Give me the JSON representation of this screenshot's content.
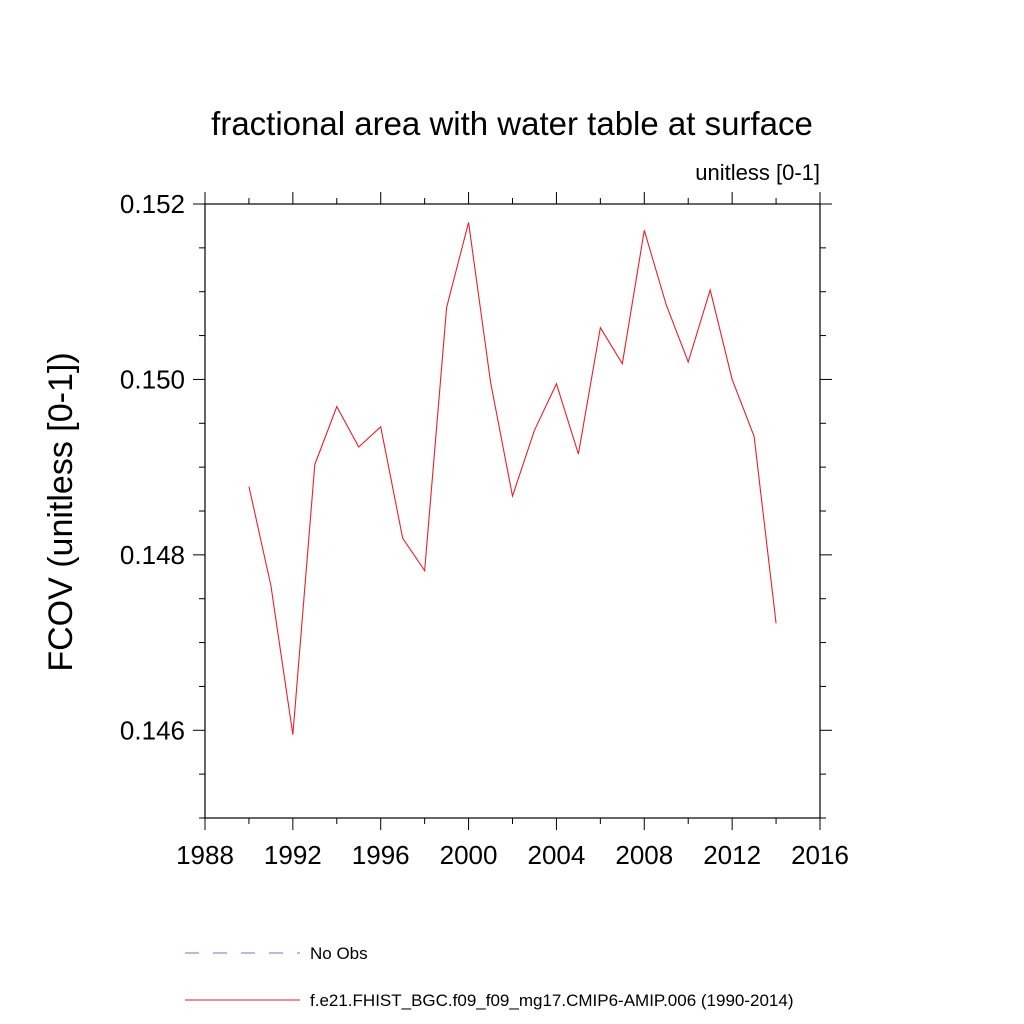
{
  "chart_data": {
    "type": "line",
    "title": "fractional area with water table at surface",
    "subtitle": "unitless [0-1]",
    "xlabel": "",
    "ylabel": "FCOV  (unitless [0-1])",
    "xlim": [
      1988,
      2016
    ],
    "ylim": [
      0.145,
      0.152
    ],
    "x_ticks": [
      "1988",
      "1992",
      "1996",
      "2000",
      "2004",
      "2008",
      "2012",
      "2016"
    ],
    "y_ticks": [
      "0.146",
      "0.148",
      "0.150",
      "0.152"
    ],
    "grid": false,
    "legend_position": "bottom",
    "series": [
      {
        "name": "f.e21.FHIST_BGC.f09_f09_mg17.CMIP6-AMIP.006 (1990-2014)",
        "color": "#e8202a",
        "style": "solid",
        "x": [
          1990,
          1991,
          1992,
          1993,
          1994,
          1995,
          1996,
          1997,
          1998,
          1999,
          2000,
          2001,
          2002,
          2003,
          2004,
          2005,
          2006,
          2007,
          2008,
          2009,
          2010,
          2011,
          2012,
          2013,
          2014
        ],
        "y": [
          0.14878,
          0.14765,
          0.14595,
          0.14903,
          0.14969,
          0.14923,
          0.14946,
          0.14819,
          0.14782,
          0.15082,
          0.15179,
          0.14997,
          0.14867,
          0.14942,
          0.14995,
          0.14915,
          0.15059,
          0.15018,
          0.1517,
          0.15085,
          0.1502,
          0.15102,
          0.15,
          0.14935,
          0.14722
        ]
      }
    ],
    "legend": [
      {
        "label": "No Obs",
        "color": "#7a6fc4",
        "style": "dashed"
      },
      {
        "label": "f.e21.FHIST_BGC.f09_f09_mg17.CMIP6-AMIP.006 (1990-2014)",
        "color": "#e8202a",
        "style": "solid"
      }
    ]
  }
}
